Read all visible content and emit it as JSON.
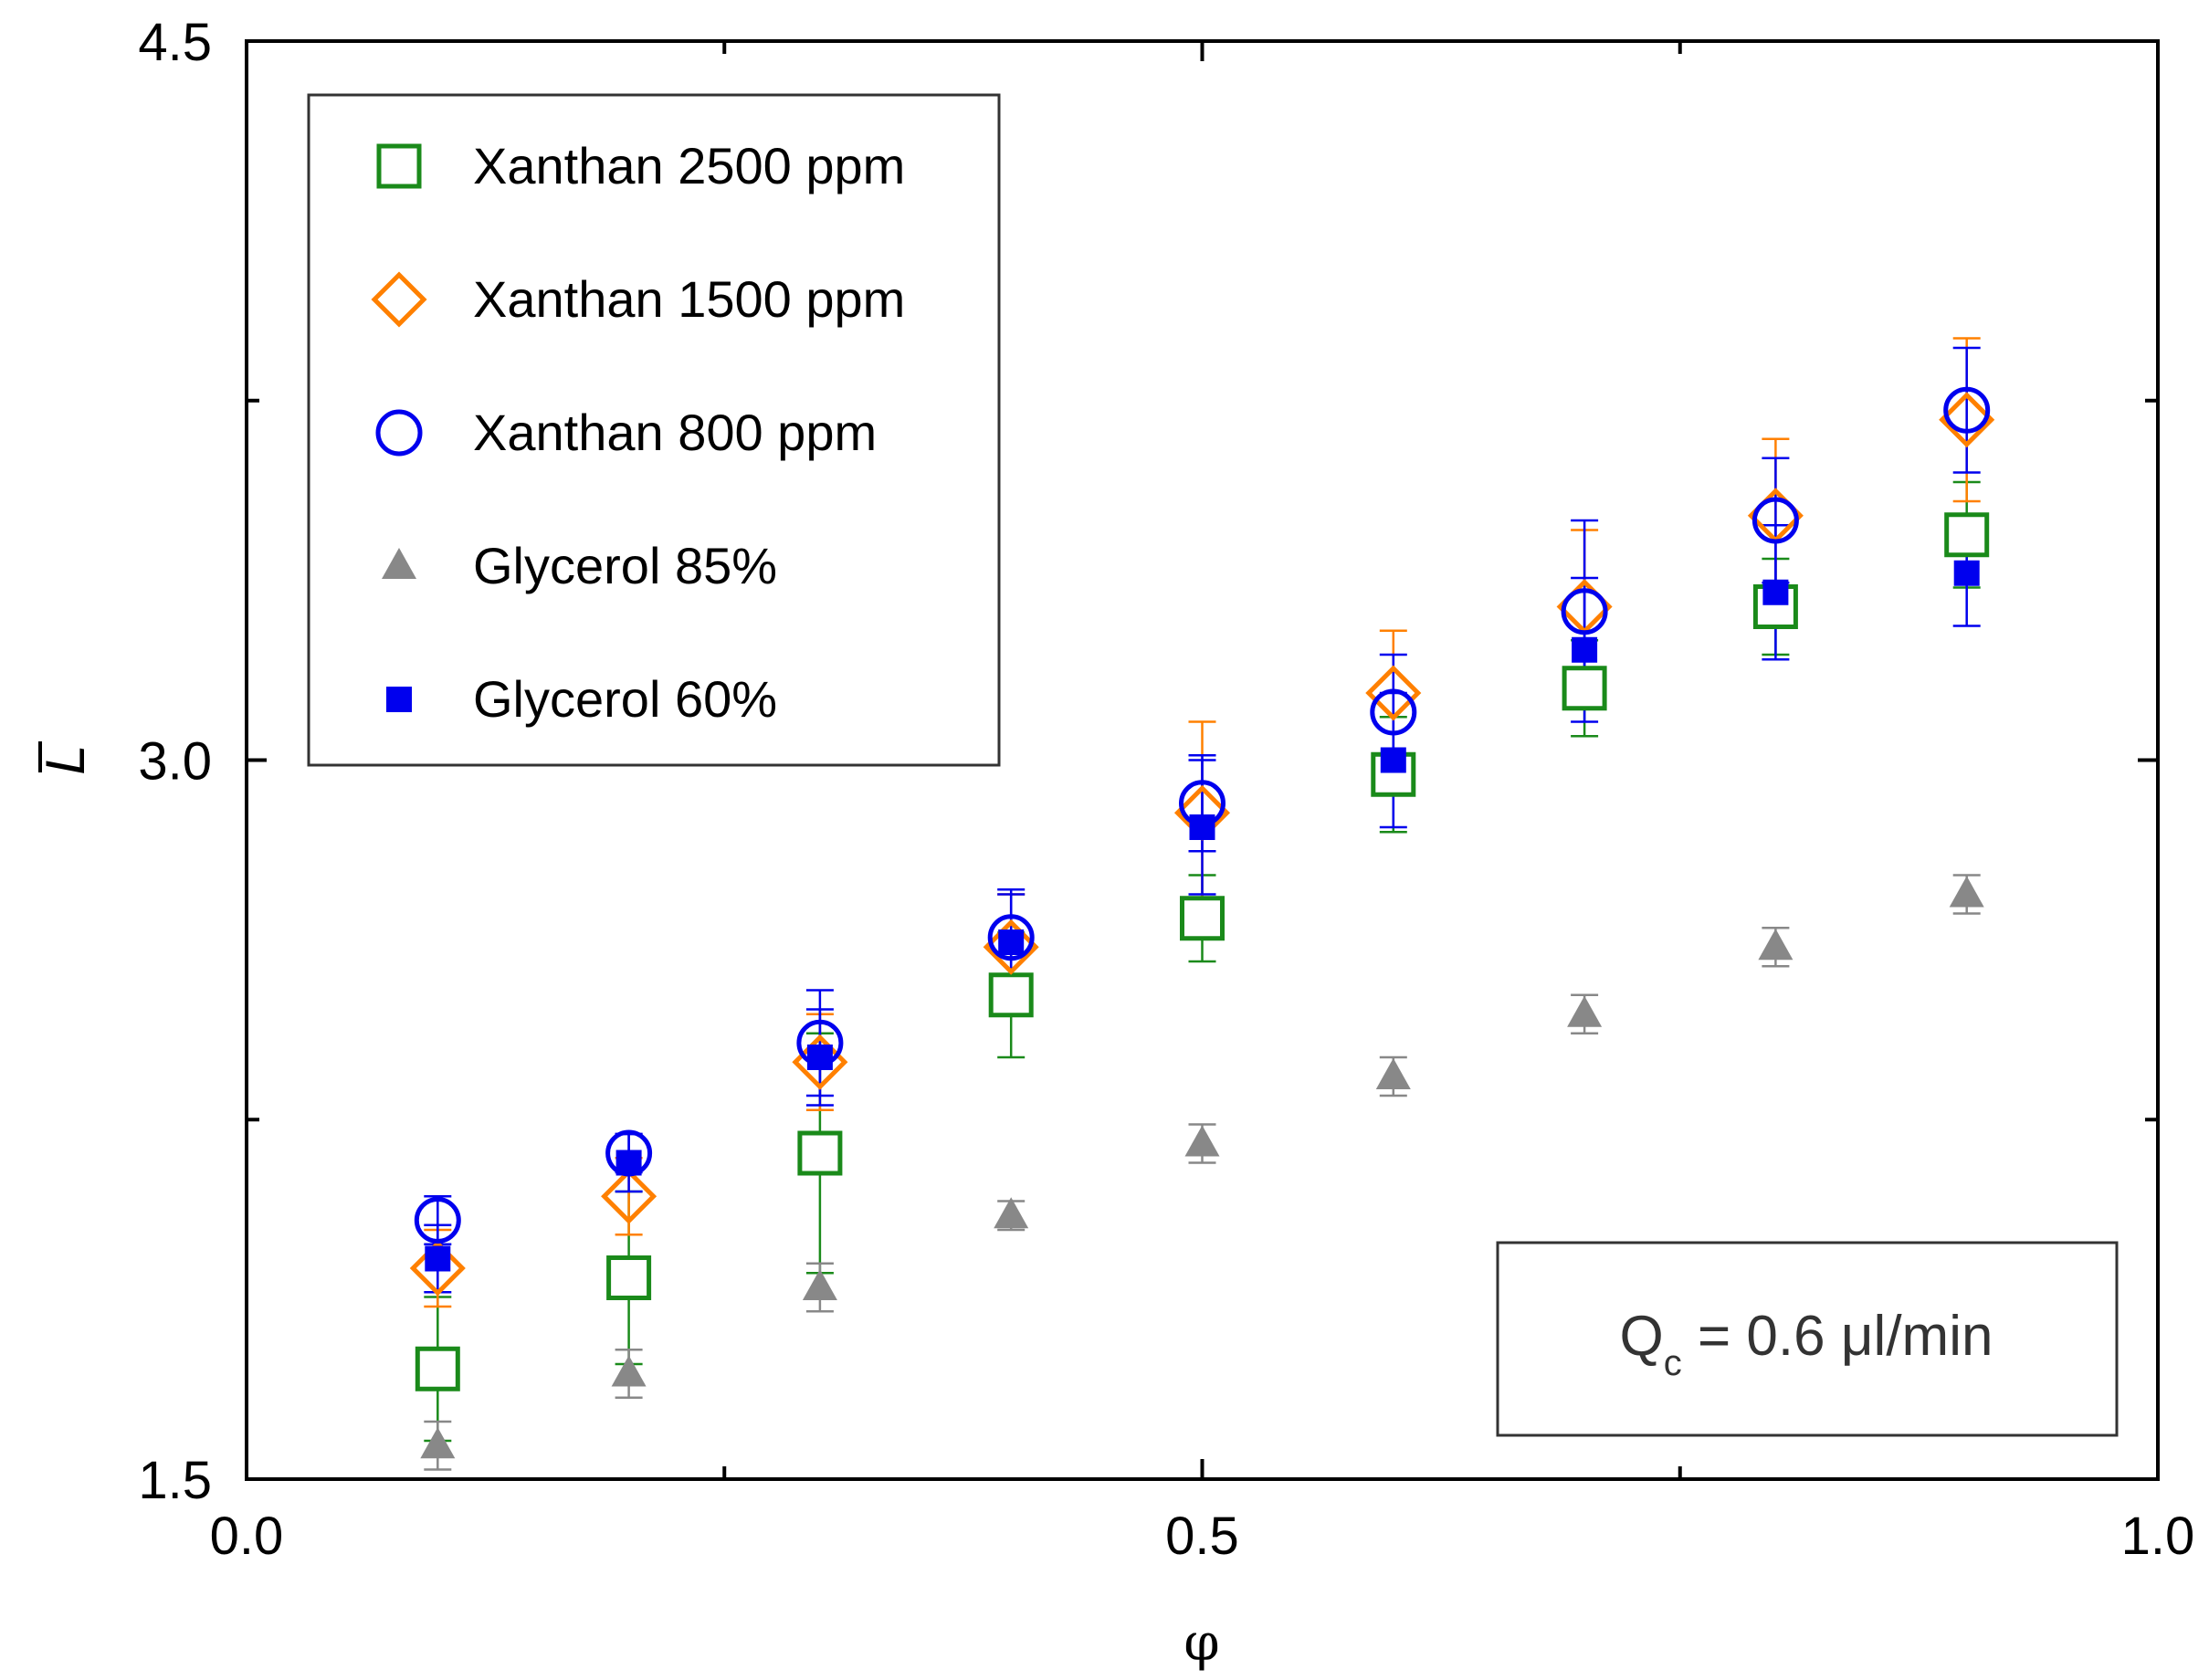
{
  "chart_data": {
    "type": "scatter",
    "title": "",
    "xlabel": "φ",
    "ylabel": "L",
    "ylabel_overbar": true,
    "xlim": [
      0.0,
      1.0
    ],
    "ylim": [
      1.5,
      4.5
    ],
    "x_ticks": [
      {
        "value": 0.0,
        "label": "0.0"
      },
      {
        "value": 0.5,
        "label": "0.5"
      },
      {
        "value": 1.0,
        "label": "1.0"
      }
    ],
    "x_minor_ticks": [
      0.25,
      0.75
    ],
    "y_ticks": [
      {
        "value": 1.5,
        "label": "1.5"
      },
      {
        "value": 3.0,
        "label": "3.0"
      },
      {
        "value": 4.5,
        "label": "4.5"
      }
    ],
    "y_minor_ticks": [
      2.25,
      3.75
    ],
    "grid": false,
    "legend_position": "top-left",
    "annotation": {
      "main": "Q",
      "sub": "c",
      "rest": " = 0.6  μl/min",
      "position": "bottom-right"
    },
    "x": [
      0.1,
      0.2,
      0.3,
      0.4,
      0.5,
      0.6,
      0.7,
      0.8,
      0.9
    ],
    "series": [
      {
        "name": "Xanthan 2500 ppm",
        "marker": "square-open",
        "color": "#1a8a1a",
        "values": [
          1.73,
          1.92,
          2.18,
          2.51,
          2.67,
          2.97,
          3.15,
          3.32,
          3.47
        ],
        "err_low": [
          0.15,
          0.18,
          0.25,
          0.13,
          0.09,
          0.12,
          0.1,
          0.1,
          0.11
        ],
        "err_high": [
          0.15,
          0.18,
          0.25,
          0.13,
          0.09,
          0.12,
          0.1,
          0.1,
          0.11
        ]
      },
      {
        "name": "Xanthan 1500 ppm",
        "marker": "diamond-open",
        "color": "#ff8000",
        "values": [
          1.94,
          2.09,
          2.37,
          2.61,
          2.89,
          3.14,
          3.32,
          3.51,
          3.71
        ],
        "err_low": [
          0.08,
          0.08,
          0.1,
          0.11,
          0.19,
          0.13,
          0.16,
          0.16,
          0.17
        ],
        "err_high": [
          0.08,
          0.08,
          0.1,
          0.11,
          0.19,
          0.13,
          0.16,
          0.16,
          0.17
        ]
      },
      {
        "name": "Xanthan 800 ppm",
        "marker": "circle-open",
        "color": "#0000ee",
        "values": [
          2.04,
          2.18,
          2.41,
          2.63,
          2.91,
          3.1,
          3.31,
          3.5,
          3.73
        ],
        "err_low": [
          0.05,
          0.04,
          0.11,
          0.09,
          0.1,
          0.12,
          0.19,
          0.13,
          0.13
        ],
        "err_high": [
          0.05,
          0.04,
          0.11,
          0.09,
          0.1,
          0.12,
          0.19,
          0.13,
          0.13
        ]
      },
      {
        "name": "Glycerol 85%",
        "marker": "triangle-filled",
        "color": "#888888",
        "values": [
          1.57,
          1.72,
          1.9,
          2.05,
          2.2,
          2.34,
          2.47,
          2.61,
          2.72
        ],
        "err_low": [
          0.05,
          0.05,
          0.05,
          0.03,
          0.04,
          0.04,
          0.04,
          0.04,
          0.04
        ],
        "err_high": [
          0.05,
          0.05,
          0.05,
          0.03,
          0.04,
          0.04,
          0.04,
          0.04,
          0.04
        ]
      },
      {
        "name": "Glycerol 60%",
        "marker": "square-filled",
        "color": "#0000ee",
        "values": [
          1.96,
          2.16,
          2.38,
          2.62,
          2.86,
          3.0,
          3.23,
          3.35,
          3.39
        ],
        "err_low": [
          0.07,
          0.06,
          0.1,
          0.11,
          0.14,
          0.14,
          0.15,
          0.14,
          0.11
        ],
        "err_high": [
          0.07,
          0.06,
          0.1,
          0.11,
          0.14,
          0.14,
          0.15,
          0.14,
          0.11
        ]
      }
    ]
  }
}
